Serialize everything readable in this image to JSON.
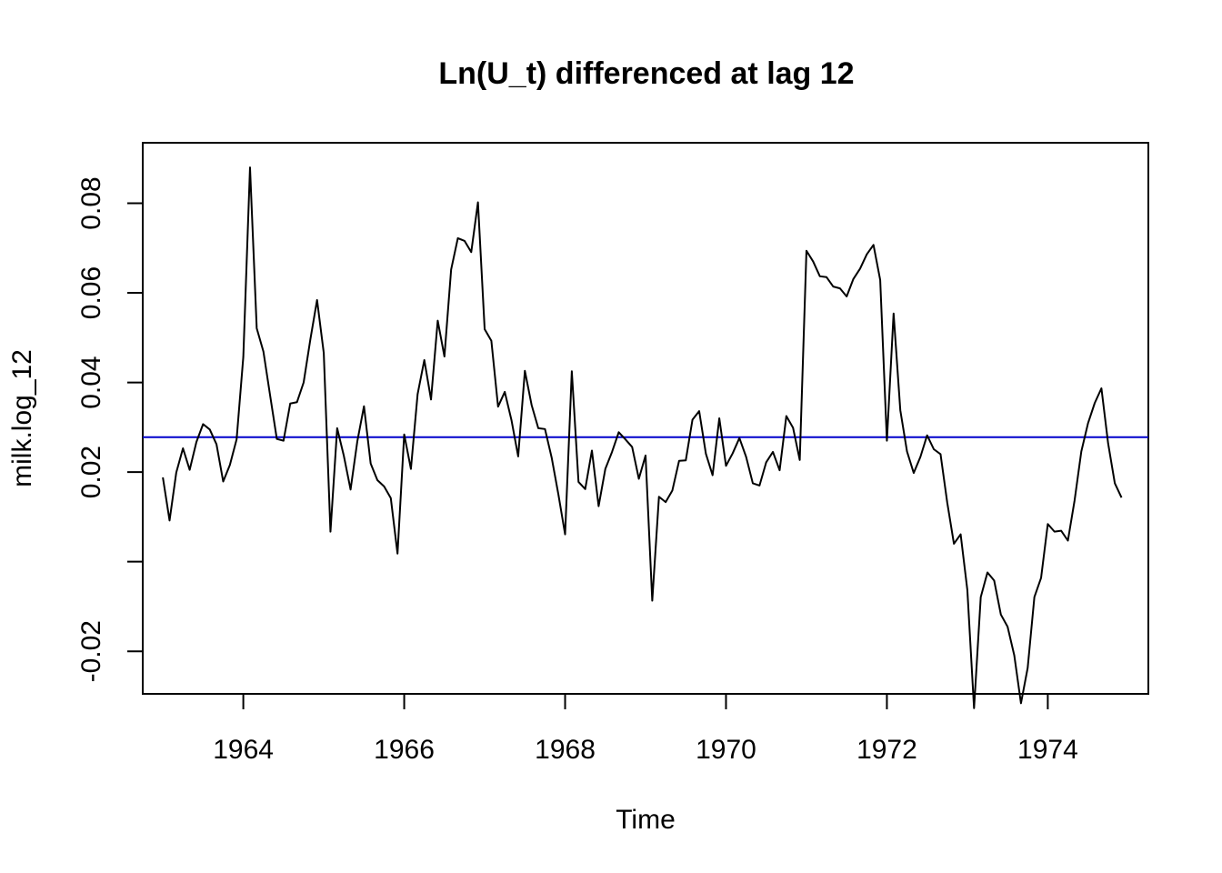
{
  "chart_data": {
    "type": "line",
    "title": "Ln(U_t) differenced at lag 12",
    "xlabel": "Time",
    "ylabel": "milk.log_12",
    "xlim": [
      1962.75,
      1975.25
    ],
    "ylim": [
      -0.0295,
      0.0935
    ],
    "x_ticks": [
      1964,
      1966,
      1968,
      1970,
      1972,
      1974
    ],
    "x_tick_labels": [
      "1964",
      "1966",
      "1968",
      "1970",
      "1972",
      "1974"
    ],
    "y_ticks": [
      -0.02,
      0.0,
      0.02,
      0.04,
      0.06,
      0.08
    ],
    "y_tick_labels": [
      "-0.02",
      "",
      "0.02",
      "0.04",
      "0.06",
      "0.08"
    ],
    "reference_line": {
      "value": 0.0278,
      "color": "#0000cc"
    },
    "line_color": "#000000",
    "grid": false,
    "series": [
      {
        "start": 1963.0,
        "step": 0.08333333,
        "values": [
          0.0188,
          0.0092,
          0.0199,
          0.0253,
          0.0205,
          0.0267,
          0.0307,
          0.0295,
          0.0262,
          0.0179,
          0.0216,
          0.0273,
          0.0457,
          0.088,
          0.0521,
          0.0469,
          0.0371,
          0.0274,
          0.027,
          0.0353,
          0.0356,
          0.04,
          0.0496,
          0.0584,
          0.0466,
          0.0067,
          0.0298,
          0.0236,
          0.0161,
          0.0268,
          0.0347,
          0.0219,
          0.0182,
          0.0168,
          0.0142,
          0.0018,
          0.0284,
          0.0207,
          0.0374,
          0.045,
          0.0362,
          0.0538,
          0.0458,
          0.0652,
          0.0722,
          0.0716,
          0.0691,
          0.0802,
          0.0519,
          0.0493,
          0.0346,
          0.0379,
          0.0316,
          0.0235,
          0.0426,
          0.035,
          0.0298,
          0.0296,
          0.0232,
          0.015,
          0.0061,
          0.0425,
          0.0178,
          0.0162,
          0.0248,
          0.0124,
          0.0207,
          0.0245,
          0.0289,
          0.0273,
          0.0256,
          0.0185,
          0.0237,
          -0.0087,
          0.0145,
          0.0133,
          0.0159,
          0.0225,
          0.0226,
          0.0317,
          0.0336,
          0.0241,
          0.0193,
          0.032,
          0.0214,
          0.0242,
          0.0276,
          0.0234,
          0.0175,
          0.017,
          0.0222,
          0.0245,
          0.0204,
          0.0325,
          0.0299,
          0.0227,
          0.0694,
          0.067,
          0.0637,
          0.0635,
          0.0614,
          0.061,
          0.0592,
          0.0631,
          0.0654,
          0.0686,
          0.0707,
          0.0629,
          0.027,
          0.0554,
          0.0338,
          0.0246,
          0.0198,
          0.0234,
          0.0282,
          0.0251,
          0.024,
          0.0132,
          0.004,
          0.0061,
          -0.0063,
          -0.0327,
          -0.0079,
          -0.0024,
          -0.0042,
          -0.0118,
          -0.0145,
          -0.0209,
          -0.0316,
          -0.0237,
          -0.0079,
          -0.0036,
          0.0084,
          0.0067,
          0.0069,
          0.0047,
          0.0137,
          0.0246,
          0.0309,
          0.0354,
          0.0387,
          0.0264,
          0.0175,
          0.0143
        ]
      }
    ]
  }
}
